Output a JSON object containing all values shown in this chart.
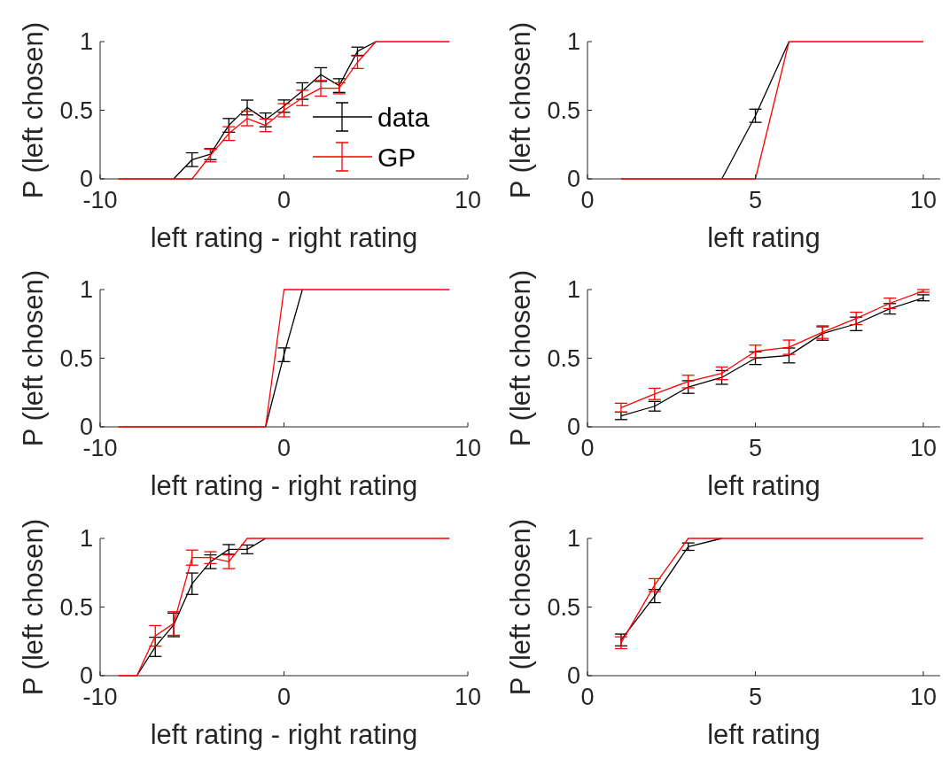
{
  "chart_data": [
    {
      "type": "line",
      "xlabel": "left rating - right rating",
      "ylabel": "P (left chosen)",
      "x": [
        -9,
        -8,
        -7,
        -6,
        -5,
        -4,
        -3,
        -2,
        -1,
        0,
        1,
        2,
        3,
        4,
        5,
        6,
        7,
        8,
        9
      ],
      "xlim": [
        -10,
        10
      ],
      "xticks": [
        -10,
        0,
        10
      ],
      "ylim": [
        0,
        1
      ],
      "yticks": [
        0,
        0.5,
        1
      ],
      "legend": "right",
      "marker": "none",
      "series": [
        {
          "name": "data",
          "color": "#000000",
          "values": [
            null,
            null,
            null,
            0,
            0.14,
            0.18,
            0.39,
            0.52,
            0.43,
            0.53,
            0.64,
            0.76,
            0.68,
            0.93,
            1,
            null,
            null,
            null,
            null
          ],
          "errors": [
            null,
            null,
            null,
            null,
            0.05,
            0.04,
            0.05,
            0.054,
            0.05,
            0.045,
            0.06,
            0.05,
            0.05,
            0.03,
            null,
            null,
            null,
            null,
            null
          ]
        },
        {
          "name": "GP",
          "color": "#ff0000",
          "values": [
            0,
            0,
            0,
            0,
            0,
            0.17,
            0.33,
            0.44,
            0.39,
            0.5,
            0.59,
            0.66,
            0.66,
            0.85,
            1,
            1,
            1,
            1,
            1
          ],
          "errors": [
            null,
            null,
            null,
            null,
            null,
            0.046,
            0.05,
            0.053,
            0.046,
            0.048,
            0.056,
            0.057,
            0.04,
            0.046,
            null,
            null,
            null,
            null,
            null
          ]
        }
      ]
    },
    {
      "type": "line",
      "xlabel": "left rating",
      "ylabel": "P (left chosen)",
      "x": [
        1,
        2,
        3,
        4,
        5,
        6,
        7,
        8,
        9,
        10
      ],
      "xlim": [
        0,
        10.5
      ],
      "xticks": [
        0,
        5,
        10
      ],
      "ylim": [
        0,
        1
      ],
      "yticks": [
        0,
        0.5,
        1
      ],
      "marker": "none",
      "series": [
        {
          "color": "#000000",
          "values": [
            null,
            null,
            null,
            0,
            0.46,
            1,
            null,
            null,
            null,
            null
          ],
          "errors": [
            null,
            null,
            null,
            null,
            0.048,
            null,
            null,
            null,
            null,
            null
          ]
        },
        {
          "color": "#ff0000",
          "values": [
            0,
            0,
            0,
            0,
            0,
            1,
            1,
            1,
            1,
            1
          ]
        }
      ]
    },
    {
      "type": "line",
      "xlabel": "left rating - right rating",
      "ylabel": "P (left chosen)",
      "x": [
        -9,
        -8,
        -7,
        -6,
        -5,
        -4,
        -3,
        -2,
        -1,
        0,
        1,
        2,
        3,
        4,
        5,
        6,
        7,
        8,
        9
      ],
      "xlim": [
        -10,
        10
      ],
      "xticks": [
        -10,
        0,
        10
      ],
      "ylim": [
        0,
        1
      ],
      "yticks": [
        0,
        0.5,
        1
      ],
      "marker": "none",
      "series": [
        {
          "color": "#000000",
          "values": [
            null,
            null,
            null,
            null,
            null,
            null,
            null,
            null,
            0,
            0.525,
            1,
            null,
            null,
            null,
            null,
            null,
            null,
            null,
            null
          ],
          "errors": [
            null,
            null,
            null,
            null,
            null,
            null,
            null,
            null,
            null,
            0.05,
            null,
            null,
            null,
            null,
            null,
            null,
            null,
            null,
            null
          ]
        },
        {
          "color": "#ff0000",
          "values": [
            0,
            0,
            0,
            0,
            0,
            0,
            0,
            0,
            0,
            1,
            1,
            1,
            1,
            1,
            1,
            1,
            1,
            1,
            1
          ]
        }
      ]
    },
    {
      "type": "line",
      "xlabel": "left rating",
      "ylabel": "P (left chosen)",
      "x": [
        1,
        2,
        3,
        4,
        5,
        6,
        7,
        8,
        9,
        10
      ],
      "xlim": [
        0,
        10.5
      ],
      "xticks": [
        0,
        5,
        10
      ],
      "ylim": [
        0,
        1
      ],
      "yticks": [
        0,
        0.5,
        1
      ],
      "marker": "none",
      "series": [
        {
          "color": "#000000",
          "values": [
            0.08,
            0.15,
            0.29,
            0.36,
            0.5,
            0.52,
            0.68,
            0.75,
            0.86,
            0.94
          ],
          "errors": [
            0.027,
            0.035,
            0.046,
            0.05,
            0.046,
            0.054,
            0.049,
            0.049,
            0.038,
            0.022
          ]
        },
        {
          "color": "#ff0000",
          "values": [
            0.14,
            0.24,
            0.33,
            0.39,
            0.55,
            0.58,
            0.69,
            0.79,
            0.9,
            0.99
          ],
          "errors": [
            0.032,
            0.041,
            0.046,
            0.046,
            0.045,
            0.052,
            0.046,
            0.045,
            0.038,
            0.01
          ]
        }
      ]
    },
    {
      "type": "line",
      "xlabel": "left rating - right rating",
      "ylabel": "P (left chosen)",
      "x": [
        -9,
        -8,
        -7,
        -6,
        -5,
        -4,
        -3,
        -2,
        -1,
        0,
        1,
        2,
        3,
        4,
        5,
        6,
        7,
        8,
        9
      ],
      "xlim": [
        -10,
        10
      ],
      "xticks": [
        -10,
        0,
        10
      ],
      "ylim": [
        0,
        1
      ],
      "yticks": [
        0,
        0.5,
        1
      ],
      "marker": "none",
      "series": [
        {
          "color": "#000000",
          "values": [
            null,
            0,
            0.21,
            0.37,
            0.67,
            0.83,
            0.92,
            0.92,
            1,
            null,
            null,
            null,
            null,
            null,
            null,
            null,
            null,
            null,
            null
          ],
          "errors": [
            null,
            null,
            0.07,
            0.086,
            0.078,
            0.05,
            0.035,
            0.032,
            null,
            null,
            null,
            null,
            null,
            null,
            null,
            null,
            null,
            null,
            null
          ]
        },
        {
          "color": "#ff0000",
          "values": [
            0,
            0,
            0.29,
            0.38,
            0.86,
            0.86,
            0.83,
            1,
            1,
            1,
            1,
            1,
            1,
            1,
            1,
            1,
            1,
            1,
            1
          ],
          "errors": [
            null,
            null,
            0.075,
            0.086,
            0.055,
            0.043,
            0.05,
            null,
            null,
            null,
            null,
            null,
            null,
            null,
            null,
            null,
            null,
            null,
            null
          ]
        }
      ]
    },
    {
      "type": "line",
      "xlabel": "left rating",
      "ylabel": "P (left chosen)",
      "x": [
        1,
        2,
        3,
        4,
        5,
        6,
        7,
        8,
        9,
        10
      ],
      "xlim": [
        0,
        10.5
      ],
      "xticks": [
        0,
        5,
        10
      ],
      "ylim": [
        0,
        1
      ],
      "yticks": [
        0,
        0.5,
        1
      ],
      "marker": "none",
      "series": [
        {
          "color": "#000000",
          "values": [
            0.26,
            0.58,
            0.94,
            1,
            null,
            null,
            null,
            null,
            null,
            null
          ],
          "errors": [
            0.043,
            0.048,
            0.027,
            null,
            null,
            null,
            null,
            null,
            null,
            null
          ]
        },
        {
          "color": "#ff0000",
          "values": [
            0.24,
            0.66,
            1,
            1,
            1,
            1,
            1,
            1,
            1,
            1
          ],
          "errors": [
            0.043,
            0.047,
            null,
            null,
            null,
            null,
            null,
            null,
            null,
            null
          ]
        }
      ]
    }
  ]
}
